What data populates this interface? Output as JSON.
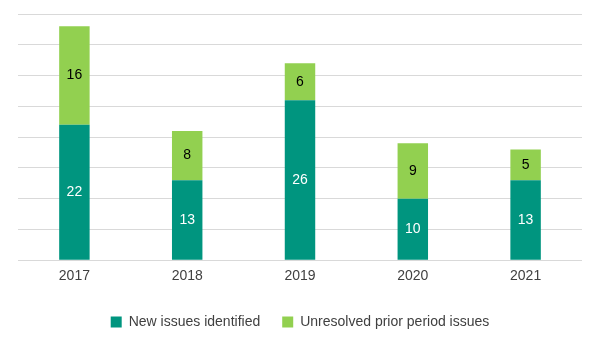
{
  "chart_data": {
    "type": "bar",
    "categories": [
      "2017",
      "2018",
      "2019",
      "2020",
      "2021"
    ],
    "series": [
      {
        "name": "New issues identified",
        "color": "#00957f",
        "values": [
          22,
          13,
          26,
          10,
          13
        ]
      },
      {
        "name": "Unresolved prior period issues",
        "color": "#92d050",
        "values": [
          16,
          8,
          6,
          9,
          5
        ]
      }
    ],
    "stacked": true,
    "ylim": [
      0,
      40
    ],
    "yticks": [
      0,
      5,
      10,
      15,
      20,
      25,
      30,
      35,
      40
    ],
    "grid": true,
    "legend": "bottom",
    "data_labels": true,
    "tick_labels": "x"
  }
}
